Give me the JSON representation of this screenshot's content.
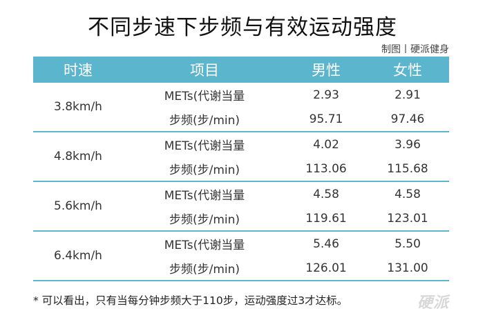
{
  "title": "不同步速下步频与有效运动强度",
  "credit": "制图丨硬派健身",
  "table": {
    "headers": [
      "时速",
      "项目",
      "男性",
      "女性"
    ],
    "groups": [
      {
        "speed": "3.8km/h",
        "rows": [
          {
            "item": "METs(代谢当量",
            "male": "2.93",
            "female": "2.91"
          },
          {
            "item": "步频(步/min)",
            "male": "95.71",
            "female": "97.46"
          }
        ]
      },
      {
        "speed": "4.8km/h",
        "rows": [
          {
            "item": "METs(代谢当量",
            "male": "4.02",
            "female": "3.96"
          },
          {
            "item": "步频(步/min)",
            "male": "113.06",
            "female": "115.68"
          }
        ]
      },
      {
        "speed": "5.6km/h",
        "rows": [
          {
            "item": "METs(代谢当量",
            "male": "4.58",
            "female": "4.58"
          },
          {
            "item": "步频(步/min)",
            "male": "119.61",
            "female": "123.01"
          }
        ]
      },
      {
        "speed": "6.4km/h",
        "rows": [
          {
            "item": "METs(代谢当量",
            "male": "5.46",
            "female": "5.50"
          },
          {
            "item": "步频(步/min)",
            "male": "126.01",
            "female": "131.00"
          }
        ]
      }
    ]
  },
  "note": "* 可以看出，只有当每分钟步频大于110步，运动强度过3才达标。",
  "watermark": "硬派",
  "colors": {
    "header_bg": "#5bb5cc",
    "header_text": "#ffffff",
    "divider": "#5bb5cc"
  }
}
